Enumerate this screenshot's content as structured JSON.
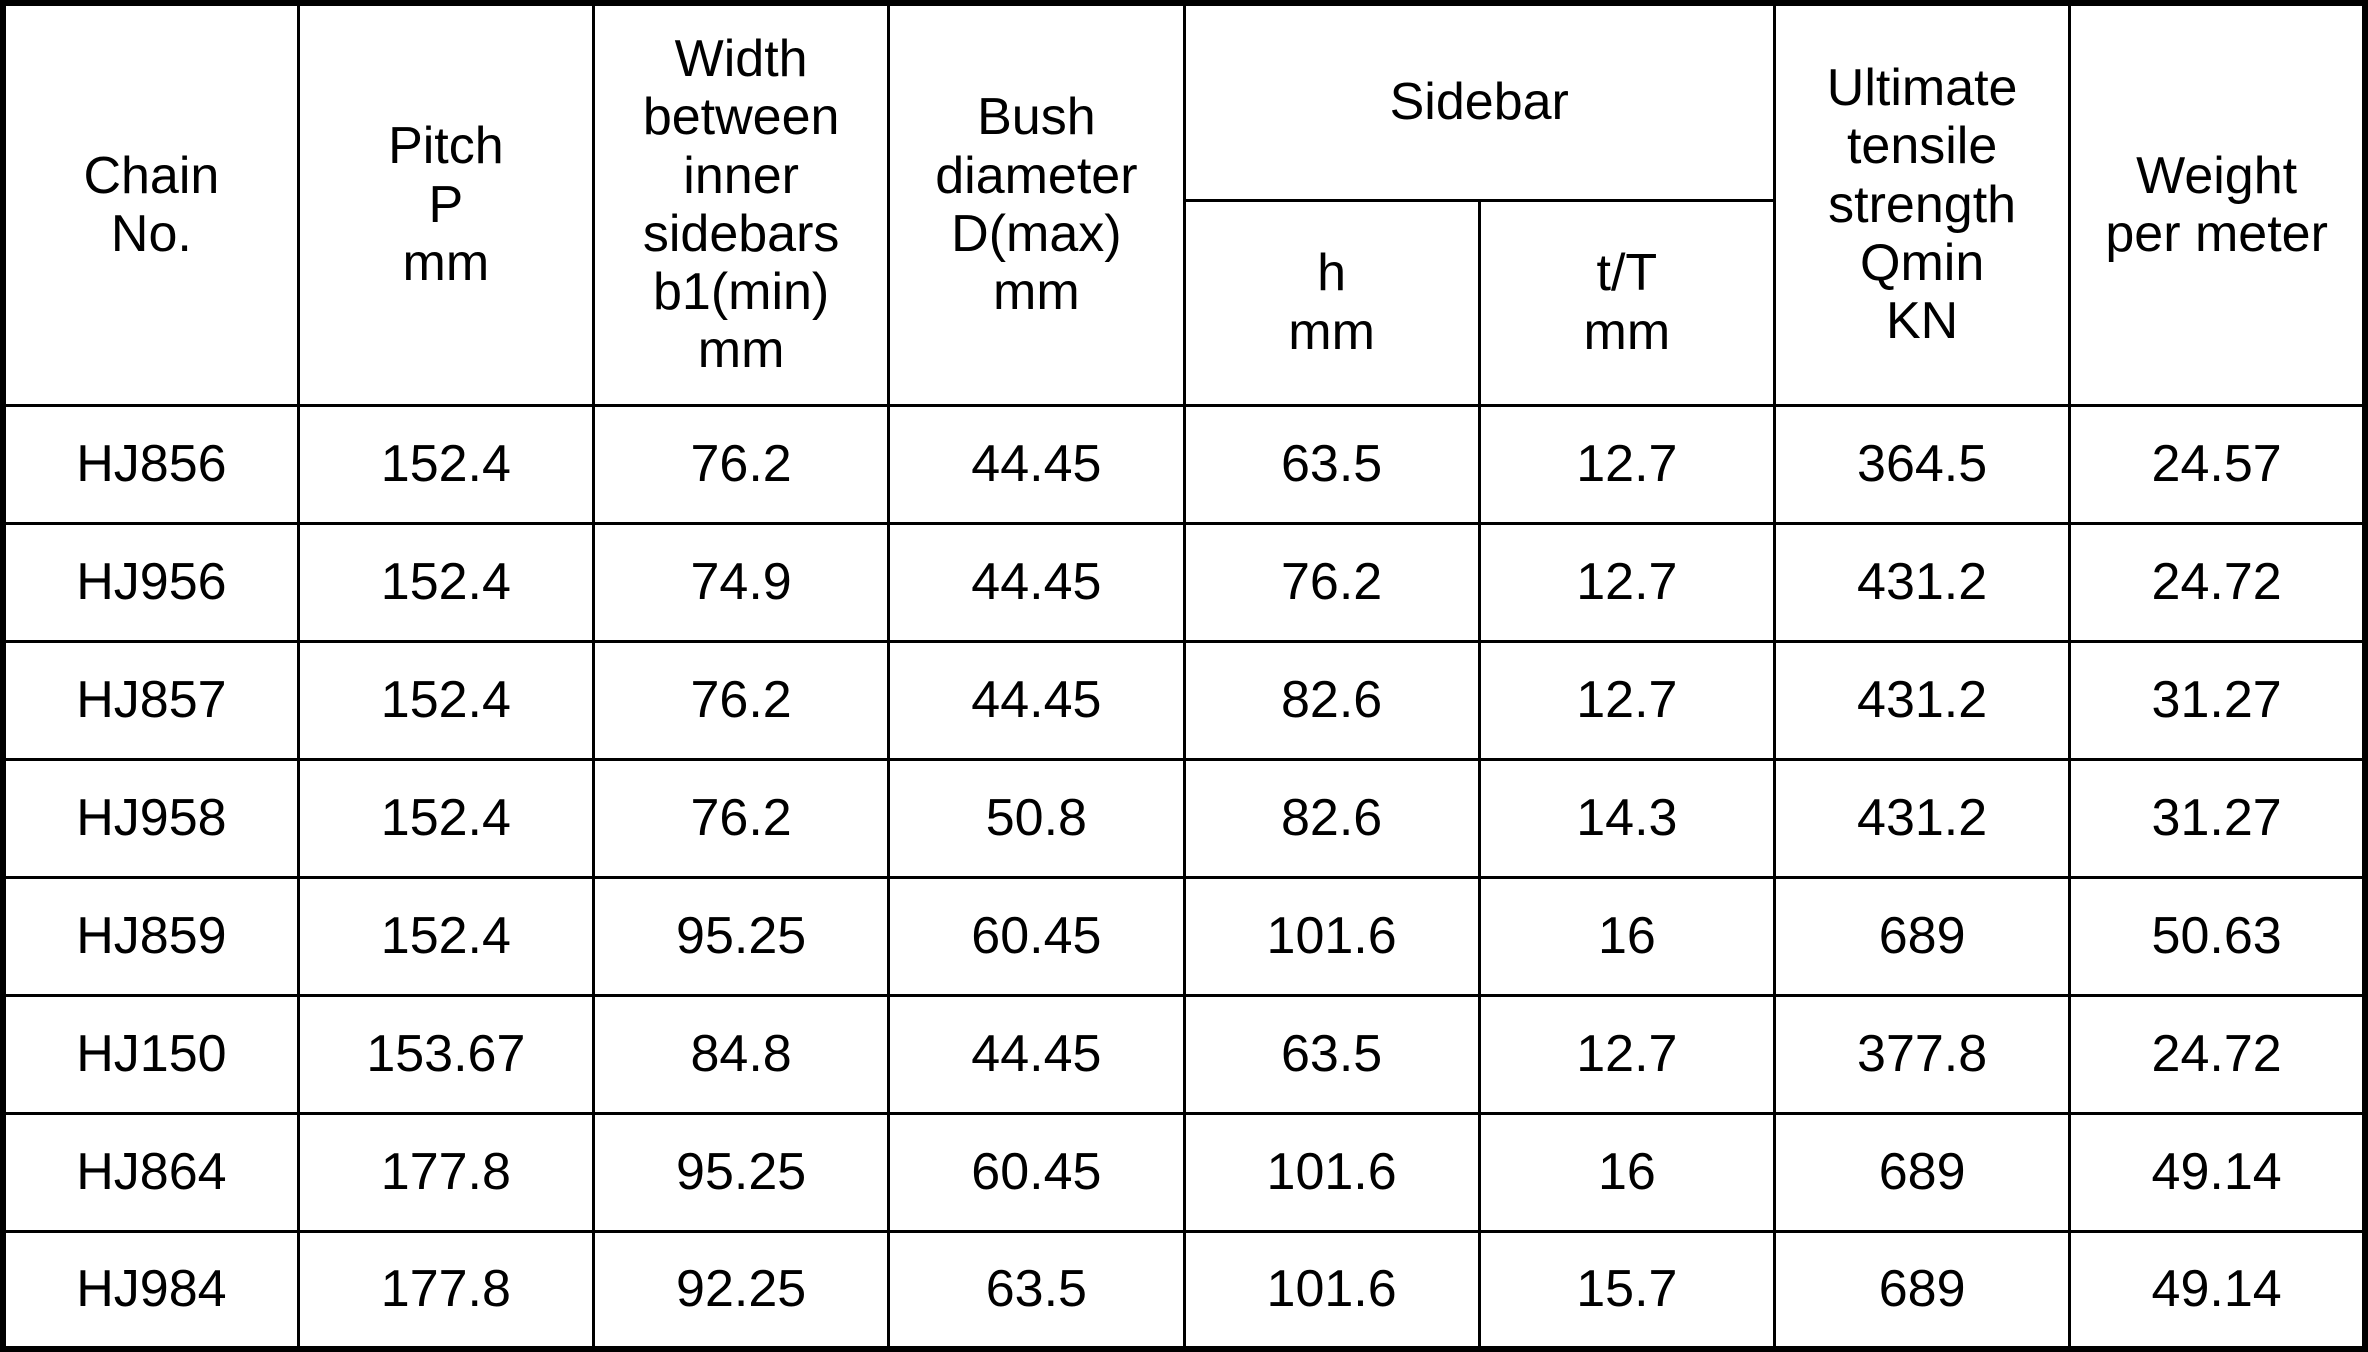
{
  "table": {
    "header": {
      "chain_no": "Chain\nNo.",
      "pitch": "Pitch\nP\nmm",
      "width_inner_sidebars": "Width\nbetween\ninner\nsidebars\nb1(min)\nmm",
      "bush_diameter": "Bush\ndiameter\nD(max)\nmm",
      "sidebar_group": "Sidebar",
      "sidebar_h": "h\nmm",
      "sidebar_tT": "t/T\nmm",
      "ultimate_tensile": "Ultimate\ntensile\nstrength\nQmin\nKN",
      "weight_per_meter": "Weight\nper meter"
    },
    "rows": [
      [
        "HJ856",
        "152.4",
        "76.2",
        "44.45",
        "63.5",
        "12.7",
        "364.5",
        "24.57"
      ],
      [
        "HJ956",
        "152.4",
        "74.9",
        "44.45",
        "76.2",
        "12.7",
        "431.2",
        "24.72"
      ],
      [
        "HJ857",
        "152.4",
        "76.2",
        "44.45",
        "82.6",
        "12.7",
        "431.2",
        "31.27"
      ],
      [
        "HJ958",
        "152.4",
        "76.2",
        "50.8",
        "82.6",
        "14.3",
        "431.2",
        "31.27"
      ],
      [
        "HJ859",
        "152.4",
        "95.25",
        "60.45",
        "101.6",
        "16",
        "689",
        "50.63"
      ],
      [
        "HJ150",
        "153.67",
        "84.8",
        "44.45",
        "63.5",
        "12.7",
        "377.8",
        "24.72"
      ],
      [
        "HJ864",
        "177.8",
        "95.25",
        "60.45",
        "101.6",
        "16",
        "689",
        "49.14"
      ],
      [
        "HJ984",
        "177.8",
        "92.25",
        "63.5",
        "101.6",
        "15.7",
        "689",
        "49.14"
      ]
    ]
  },
  "colors": {
    "border": "#000000",
    "text": "#000000",
    "background": "#ffffff"
  }
}
